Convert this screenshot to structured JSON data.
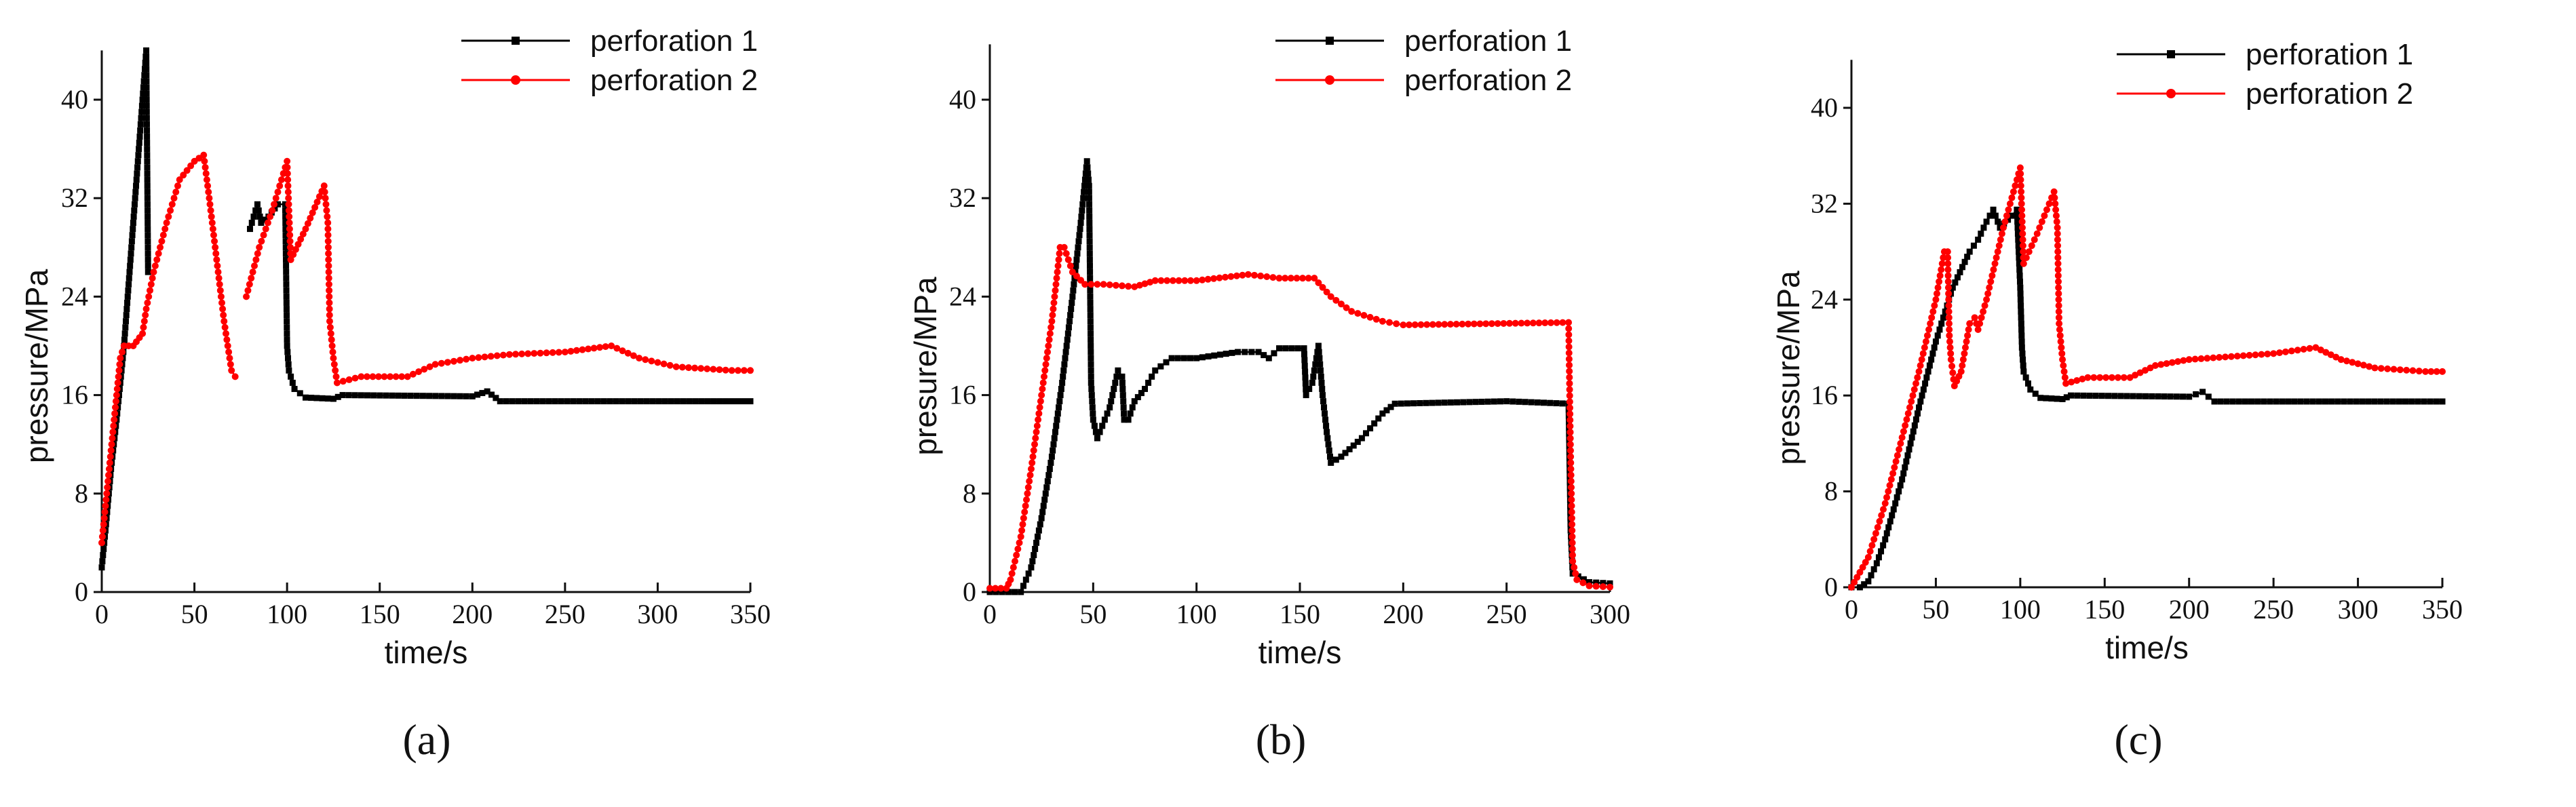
{
  "chart_data": [
    {
      "type": "line",
      "caption": "(a)",
      "xlabel": "time/s",
      "ylabel": "pressure/MPa",
      "xlim": [
        0,
        350
      ],
      "ylim": [
        0,
        44
      ],
      "xticks": [
        "0",
        "50",
        "100",
        "150",
        "200",
        "250",
        "300",
        "350"
      ],
      "yticks": [
        "0",
        "8",
        "16",
        "24",
        "32",
        "40"
      ],
      "legend_position": "top-right",
      "grid": false,
      "series": [
        {
          "name": "perforation 1",
          "color": "#000000",
          "marker": "square",
          "points": [
            [
              0,
              2
            ],
            [
              2,
              5
            ],
            [
              5,
              10
            ],
            [
              8,
              14
            ],
            [
              10,
              17
            ],
            [
              12,
              20
            ],
            [
              14,
              24
            ],
            [
              16,
              28
            ],
            [
              18,
              32
            ],
            [
              20,
              36
            ],
            [
              22,
              40
            ],
            [
              23,
              42
            ],
            [
              24,
              44
            ],
            [
              25,
              26
            ],
            null,
            [
              80,
              29.5
            ],
            [
              84,
              31.5
            ],
            [
              86,
              30
            ],
            [
              90,
              30.5
            ],
            [
              95,
              31.5
            ],
            [
              99,
              31.5
            ],
            [
              100,
              20
            ],
            [
              101,
              18
            ],
            [
              104,
              16.5
            ],
            [
              110,
              15.8
            ],
            [
              125,
              15.7
            ],
            [
              130,
              16
            ],
            [
              200,
              15.9
            ],
            [
              208,
              16.3
            ],
            [
              215,
              15.5
            ],
            [
              350,
              15.5
            ]
          ]
        },
        {
          "name": "perforation 2",
          "color": "#ff0000",
          "marker": "circle",
          "points": [
            [
              0,
              4
            ],
            [
              2,
              7
            ],
            [
              4,
              10
            ],
            [
              6,
              13
            ],
            [
              8,
              16
            ],
            [
              10,
              19
            ],
            [
              12,
              20
            ],
            [
              17,
              20
            ],
            [
              22,
              21
            ],
            [
              24,
              23
            ],
            [
              28,
              26
            ],
            [
              35,
              30
            ],
            [
              42,
              33.5
            ],
            [
              50,
              35
            ],
            [
              55,
              35.5
            ],
            [
              58,
              32
            ],
            [
              62,
              27
            ],
            [
              66,
              22
            ],
            [
              70,
              18
            ],
            [
              72,
              17.5
            ],
            null,
            [
              78,
              24
            ],
            [
              85,
              28
            ],
            [
              92,
              31
            ],
            [
              100,
              35
            ],
            [
              102,
              27
            ],
            [
              110,
              29.5
            ],
            [
              120,
              33
            ],
            [
              122,
              30
            ],
            [
              123,
              22
            ],
            [
              125,
              19
            ],
            [
              127,
              17
            ],
            [
              140,
              17.5
            ],
            [
              165,
              17.5
            ],
            [
              180,
              18.5
            ],
            [
              200,
              19
            ],
            [
              220,
              19.3
            ],
            [
              250,
              19.5
            ],
            [
              275,
              20
            ],
            [
              290,
              19
            ],
            [
              310,
              18.3
            ],
            [
              340,
              18
            ],
            [
              350,
              18
            ]
          ]
        }
      ]
    },
    {
      "type": "line",
      "caption": "(b)",
      "xlabel": "time/s",
      "ylabel": "presure/MPa",
      "xlim": [
        0,
        300
      ],
      "ylim": [
        0,
        44.5
      ],
      "xticks": [
        "0",
        "50",
        "100",
        "150",
        "200",
        "250",
        "300"
      ],
      "yticks": [
        "0",
        "8",
        "16",
        "24",
        "32",
        "40"
      ],
      "legend_position": "top-right",
      "grid": false,
      "series": [
        {
          "name": "perforation 1",
          "color": "#000000",
          "marker": "square",
          "points": [
            [
              0,
              0
            ],
            [
              15,
              0
            ],
            [
              20,
              2
            ],
            [
              25,
              6
            ],
            [
              30,
              11
            ],
            [
              35,
              17
            ],
            [
              40,
              24
            ],
            [
              44,
              30
            ],
            [
              47,
              35
            ],
            [
              48,
              33
            ],
            [
              49,
              17
            ],
            [
              50,
              14
            ],
            [
              52,
              12.5
            ],
            [
              58,
              15
            ],
            [
              62,
              18
            ],
            [
              64,
              17.5
            ],
            [
              65,
              14
            ],
            [
              67,
              14
            ],
            [
              70,
              15.5
            ],
            [
              75,
              16.5
            ],
            [
              80,
              18
            ],
            [
              88,
              19
            ],
            [
              100,
              19
            ],
            [
              120,
              19.5
            ],
            [
              130,
              19.5
            ],
            [
              135,
              19
            ],
            [
              140,
              19.8
            ],
            [
              152,
              19.8
            ],
            [
              153,
              16
            ],
            [
              156,
              17
            ],
            [
              159,
              20
            ],
            [
              161,
              16
            ],
            [
              163,
              13
            ],
            [
              165,
              10.5
            ],
            [
              170,
              11
            ],
            [
              180,
              12.5
            ],
            [
              190,
              14.5
            ],
            [
              196,
              15.3
            ],
            [
              250,
              15.5
            ],
            [
              280,
              15.3
            ],
            [
              281,
              5
            ],
            [
              282,
              1.5
            ],
            [
              290,
              0.8
            ],
            [
              300,
              0.7
            ]
          ]
        },
        {
          "name": "perforation 2",
          "color": "#ff0000",
          "marker": "circle",
          "points": [
            [
              0,
              0.3
            ],
            [
              8,
              0.3
            ],
            [
              10,
              1
            ],
            [
              15,
              4.5
            ],
            [
              20,
              10
            ],
            [
              25,
              16
            ],
            [
              30,
              22
            ],
            [
              34,
              28
            ],
            [
              36,
              28
            ],
            [
              40,
              26
            ],
            [
              46,
              25
            ],
            [
              55,
              25
            ],
            [
              70,
              24.8
            ],
            [
              80,
              25.3
            ],
            [
              100,
              25.3
            ],
            [
              125,
              25.8
            ],
            [
              140,
              25.5
            ],
            [
              157,
              25.5
            ],
            [
              165,
              24
            ],
            [
              175,
              22.8
            ],
            [
              190,
              22
            ],
            [
              200,
              21.7
            ],
            [
              240,
              21.8
            ],
            [
              280,
              21.9
            ],
            [
              281,
              11
            ],
            [
              282,
              2.5
            ],
            [
              284,
              1
            ],
            [
              290,
              0.5
            ],
            [
              300,
              0.4
            ]
          ]
        }
      ]
    },
    {
      "type": "line",
      "caption": "(c)",
      "xlabel": "time/s",
      "ylabel": "pressure/MPa",
      "xlim": [
        0,
        350
      ],
      "ylim": [
        0,
        44
      ],
      "xticks": [
        "0",
        "50",
        "100",
        "150",
        "200",
        "250",
        "300",
        "350"
      ],
      "yticks": [
        "0",
        "8",
        "16",
        "24",
        "32",
        "40"
      ],
      "legend_position": "top-right",
      "grid": false,
      "series": [
        {
          "name": "perforation 1",
          "color": "#000000",
          "marker": "square",
          "points": [
            [
              0,
              0
            ],
            [
              5,
              0
            ],
            [
              10,
              0.5
            ],
            [
              15,
              2
            ],
            [
              20,
              4
            ],
            [
              30,
              9
            ],
            [
              40,
              15
            ],
            [
              50,
              20.5
            ],
            [
              60,
              25
            ],
            [
              70,
              28
            ],
            [
              75,
              29
            ],
            [
              80,
              30.5
            ],
            [
              84,
              31.5
            ],
            [
              88,
              30
            ],
            [
              95,
              31
            ],
            [
              98,
              31.5
            ],
            [
              100,
              25
            ],
            [
              101,
              20
            ],
            [
              102,
              18
            ],
            [
              106,
              16.5
            ],
            [
              112,
              15.8
            ],
            [
              125,
              15.7
            ],
            [
              130,
              16
            ],
            [
              200,
              15.9
            ],
            [
              208,
              16.3
            ],
            [
              215,
              15.5
            ],
            [
              350,
              15.5
            ]
          ]
        },
        {
          "name": "perforation 2",
          "color": "#ff0000",
          "marker": "circle",
          "points": [
            [
              0,
              0
            ],
            [
              10,
              2.5
            ],
            [
              20,
              7
            ],
            [
              30,
              12.5
            ],
            [
              40,
              18
            ],
            [
              50,
              24
            ],
            [
              55,
              28
            ],
            [
              57,
              28
            ],
            [
              58,
              21
            ],
            [
              59,
              19
            ],
            [
              61,
              16.8
            ],
            [
              65,
              18
            ],
            [
              70,
              22
            ],
            [
              73,
              22.5
            ],
            [
              75,
              21.5
            ],
            [
              80,
              24
            ],
            [
              90,
              30
            ],
            [
              100,
              35
            ],
            [
              102,
              27
            ],
            [
              110,
              29.5
            ],
            [
              120,
              33
            ],
            [
              122,
              30
            ],
            [
              123,
              22
            ],
            [
              125,
              19
            ],
            [
              127,
              17
            ],
            [
              140,
              17.5
            ],
            [
              165,
              17.5
            ],
            [
              180,
              18.5
            ],
            [
              200,
              19
            ],
            [
              250,
              19.5
            ],
            [
              275,
              20
            ],
            [
              290,
              19
            ],
            [
              310,
              18.3
            ],
            [
              340,
              18
            ],
            [
              350,
              18
            ]
          ]
        }
      ]
    }
  ]
}
